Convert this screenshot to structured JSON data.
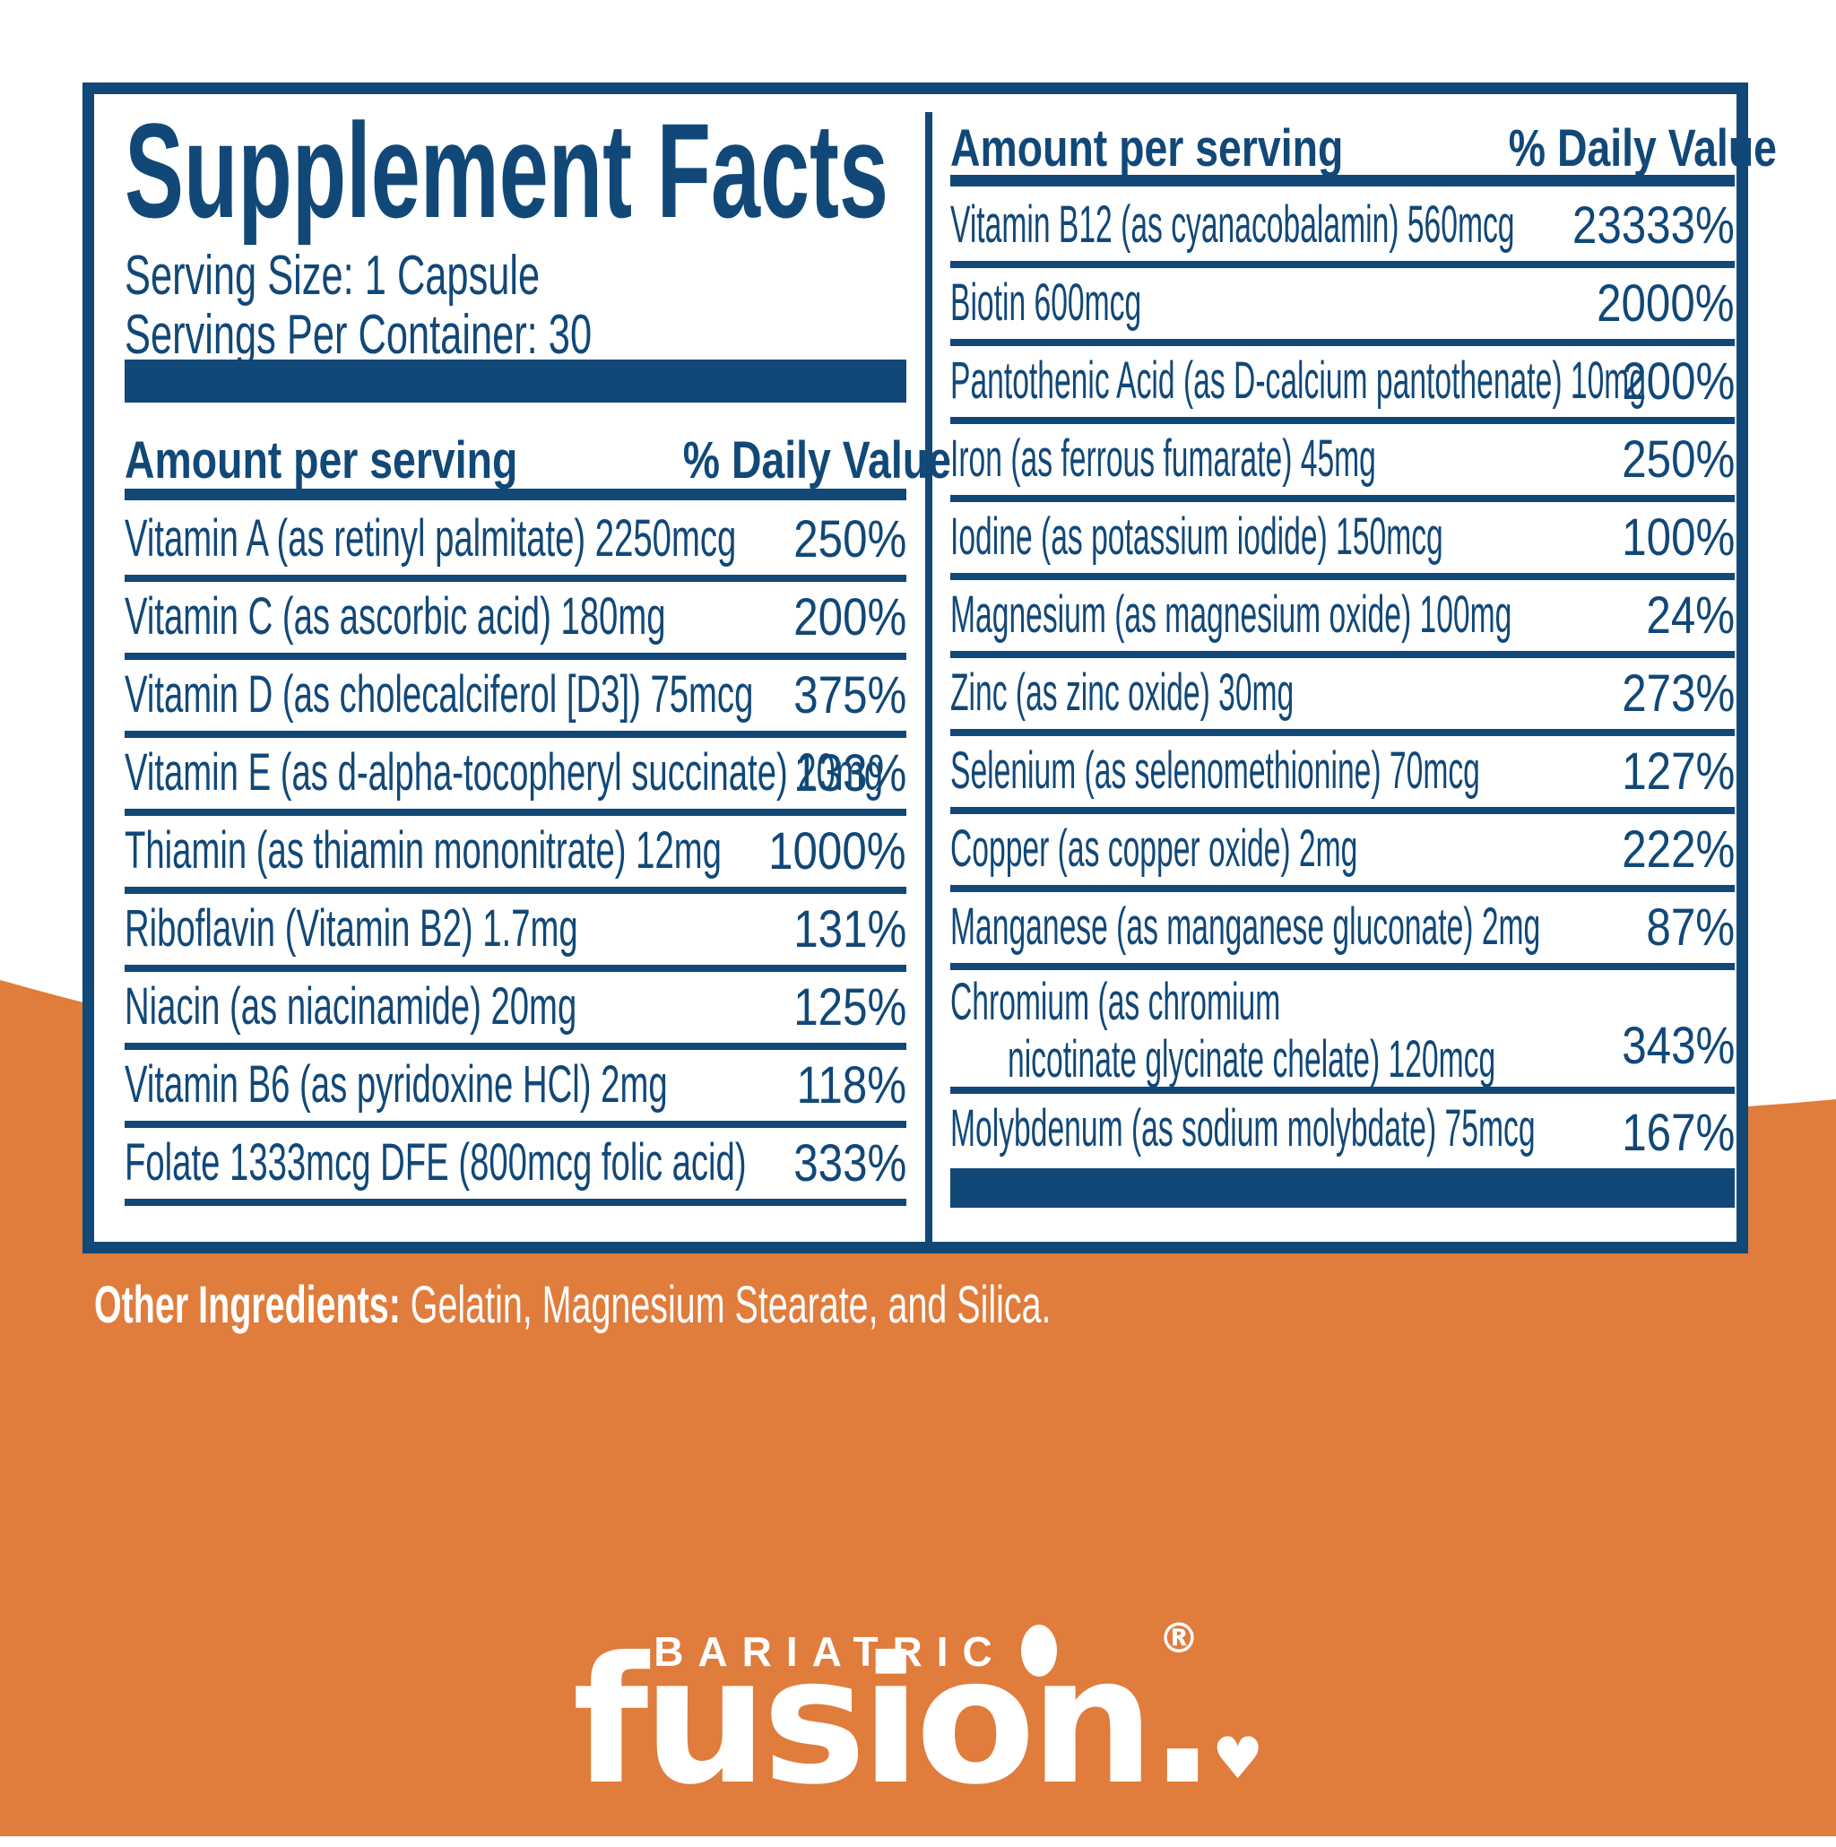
{
  "colors": {
    "navy": "#114878",
    "orange": "#E07C3C"
  },
  "supplement_facts": {
    "title": "Supplement Facts",
    "serving_size": "Serving Size: 1 Capsule",
    "servings_per_container": "Servings Per Container: 30",
    "left_header": {
      "amount": "Amount per serving",
      "daily_value": "% Daily Value"
    },
    "right_header": {
      "amount": "Amount per serving",
      "daily_value": "% Daily Value"
    },
    "left_column": {
      "rows": [
        {
          "name": "Vitamin A (as retinyl palmitate) 2250mcg",
          "daily_value": "250%"
        },
        {
          "name": "Vitamin C (as ascorbic acid) 180mg",
          "daily_value": "200%"
        },
        {
          "name": "Vitamin D (as cholecalciferol [D3]) 75mcg",
          "daily_value": "375%"
        },
        {
          "name": "Vitamin E (as d-alpha-tocopheryl succinate) 20mg",
          "daily_value": "133%"
        },
        {
          "name": "Thiamin (as thiamin mononitrate) 12mg",
          "daily_value": "1000%"
        },
        {
          "name": "Riboflavin (Vitamin B2) 1.7mg",
          "daily_value": "131%"
        },
        {
          "name": "Niacin (as niacinamide) 20mg",
          "daily_value": "125%"
        },
        {
          "name": "Vitamin B6 (as pyridoxine HCl) 2mg",
          "daily_value": "118%"
        },
        {
          "name": "Folate 1333mcg DFE (800mcg folic acid)",
          "daily_value": "333%"
        }
      ]
    },
    "right_column": {
      "rows": [
        {
          "name": "Vitamin B12 (as cyanacobalamin) 560mcg",
          "daily_value": "23333%"
        },
        {
          "name": "Biotin 600mcg",
          "daily_value": "2000%"
        },
        {
          "name": "Pantothenic Acid (as D-calcium pantothenate) 10mg",
          "daily_value": "200%"
        },
        {
          "name": "Iron (as ferrous fumarate) 45mg",
          "daily_value": "250%"
        },
        {
          "name": "Iodine (as potassium iodide) 150mcg",
          "daily_value": "100%"
        },
        {
          "name": "Magnesium (as magnesium oxide) 100mg",
          "daily_value": "24%"
        },
        {
          "name": "Zinc (as zinc oxide) 30mg",
          "daily_value": "273%"
        },
        {
          "name": "Selenium (as selenomethionine) 70mcg",
          "daily_value": "127%"
        },
        {
          "name": "Copper (as copper oxide) 2mg",
          "daily_value": "222%"
        },
        {
          "name": "Manganese (as manganese gluconate) 2mg",
          "daily_value": "87%"
        },
        {
          "name": "Chromium (as chromium",
          "name_line2": "nicotinate glycinate chelate) 120mcg",
          "daily_value": "343%"
        },
        {
          "name": "Molybdenum (as sodium molybdate) 75mcg",
          "daily_value": "167%"
        }
      ]
    }
  },
  "other_ingredients": {
    "label": "Other Ingredients:",
    "text": " Gelatin, Magnesium Stearate, and Silica."
  },
  "logo": {
    "brand_top": "BARIATRIC",
    "brand_main": "fusion",
    "registered_mark": "®",
    "period": ".",
    "heart": "♥"
  }
}
